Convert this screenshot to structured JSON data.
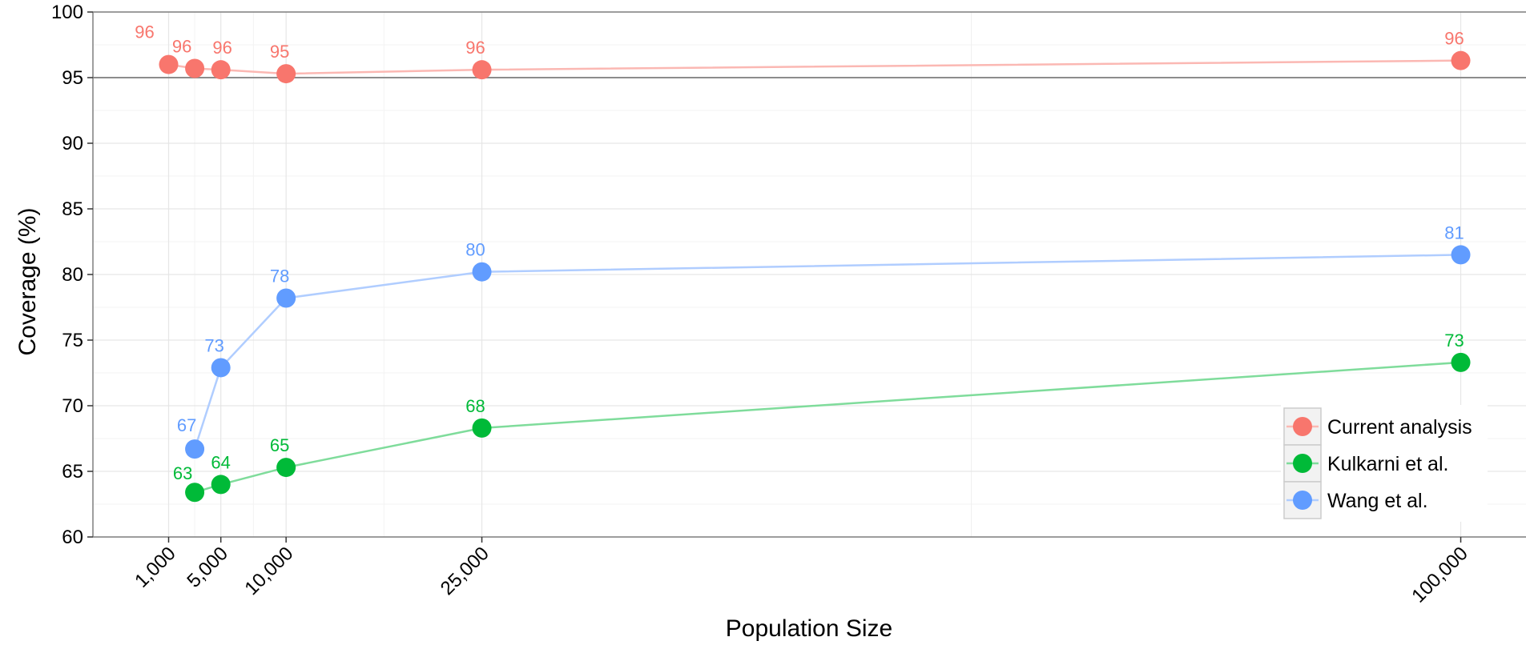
{
  "chart_data": {
    "type": "line",
    "title": "",
    "xlabel": "Population Size",
    "ylabel": "Coverage (%)",
    "xlim": [
      -4800,
      105000
    ],
    "ylim": [
      60,
      100
    ],
    "x_ticks": [
      {
        "value": 1000,
        "label": "1,000"
      },
      {
        "value": 5000,
        "label": "5,000"
      },
      {
        "value": 10000,
        "label": "10,000"
      },
      {
        "value": 25000,
        "label": "25,000"
      },
      {
        "value": 100000,
        "label": "100,000"
      }
    ],
    "x_minor_gridlines": [
      62500
    ],
    "y_ticks": [
      60,
      65,
      70,
      75,
      80,
      85,
      90,
      95,
      100
    ],
    "reference_line_y": 95,
    "grid": true,
    "legend_position": "right",
    "series": [
      {
        "name": "Current analysis",
        "color": "#F8766D",
        "line_color": "#FBB8B3",
        "points": [
          {
            "x": 1000,
            "y": 96.0,
            "label": "96"
          },
          {
            "x": 3000,
            "y": 95.7,
            "label": "96"
          },
          {
            "x": 5000,
            "y": 95.6,
            "label": "96"
          },
          {
            "x": 10000,
            "y": 95.3,
            "label": "95"
          },
          {
            "x": 25000,
            "y": 95.6,
            "label": "96"
          },
          {
            "x": 100000,
            "y": 96.3,
            "label": "96"
          }
        ]
      },
      {
        "name": "Kulkarni et al.",
        "color": "#00BA38",
        "line_color": "#7FDC9B",
        "points": [
          {
            "x": 3000,
            "y": 63.4,
            "label": "63"
          },
          {
            "x": 5000,
            "y": 64.0,
            "label": "64"
          },
          {
            "x": 10000,
            "y": 65.3,
            "label": "65"
          },
          {
            "x": 25000,
            "y": 68.3,
            "label": "68"
          },
          {
            "x": 100000,
            "y": 73.3,
            "label": "73"
          }
        ]
      },
      {
        "name": "Wang et al.",
        "color": "#619CFF",
        "line_color": "#B0CDFF",
        "points": [
          {
            "x": 3000,
            "y": 66.7,
            "label": "67"
          },
          {
            "x": 5000,
            "y": 72.9,
            "label": "73"
          },
          {
            "x": 10000,
            "y": 78.2,
            "label": "78"
          },
          {
            "x": 25000,
            "y": 80.2,
            "label": "80"
          },
          {
            "x": 100000,
            "y": 81.5,
            "label": "81"
          }
        ]
      }
    ],
    "legend_order": [
      "Current analysis",
      "Kulkarni et al.",
      "Wang et al."
    ]
  }
}
